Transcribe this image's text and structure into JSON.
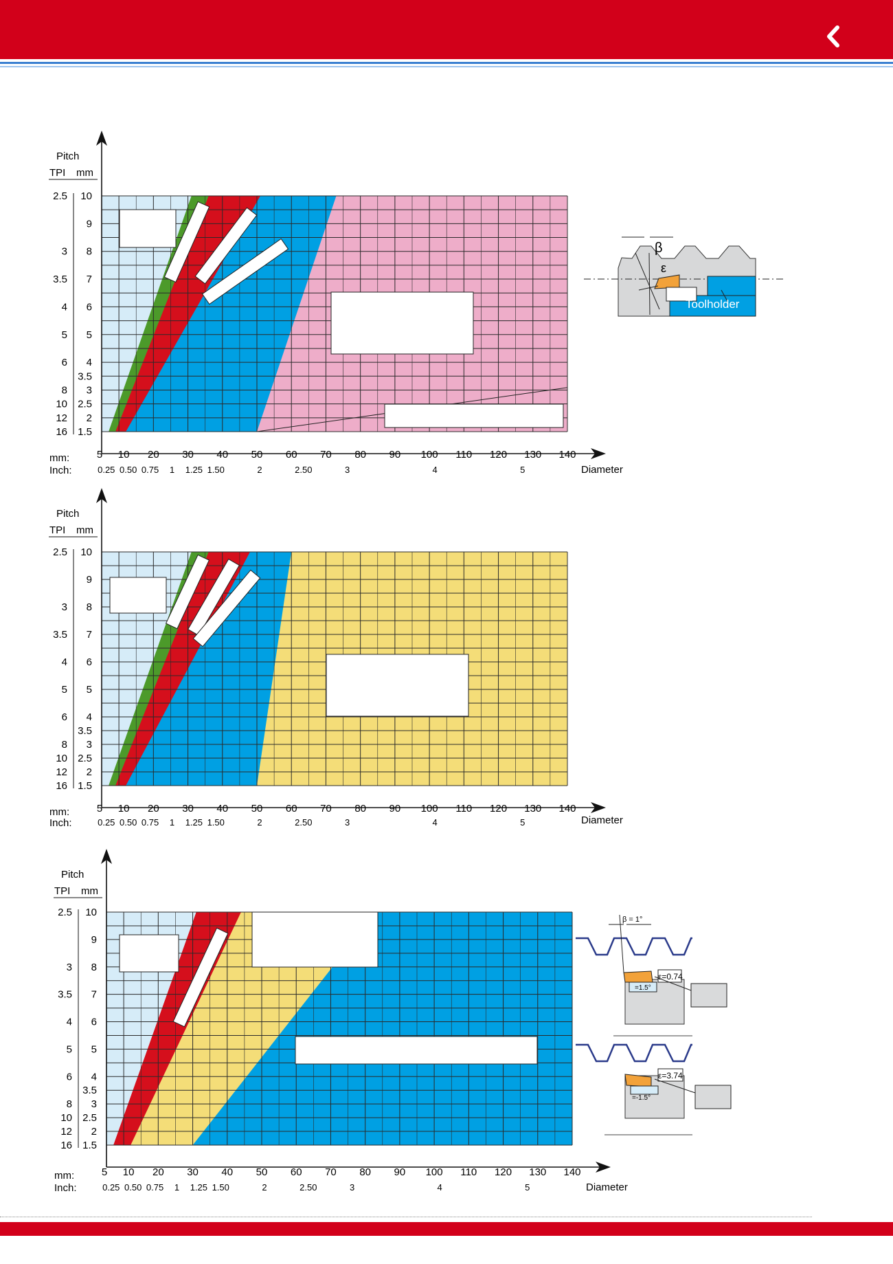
{
  "nav": {
    "back_icon": "chevron-left-icon"
  },
  "colors": {
    "brand_red": "#d2001a",
    "light_blue": "#d6ecf8",
    "green": "#4c9a2a",
    "red": "#d50f1c",
    "blue": "#00a0e3",
    "yellow": "#f4dd78",
    "pink": "#eeadc9",
    "orange": "#f2a23a",
    "grey": "#d7d8d9"
  },
  "axes": {
    "pitch_label": "Pitch",
    "tpi_label": "TPI",
    "mm_label": "mm",
    "diameter_label": "Diameter",
    "mm_row_label": "mm:",
    "inch_row_label": "Inch:",
    "pitch_mm_ticks": [
      "10",
      "9",
      "8",
      "7",
      "6",
      "5",
      "4",
      "3.5",
      "3",
      "2.5",
      "2",
      "1.5"
    ],
    "tpi_ticks": [
      "2.5",
      "3",
      "3.5",
      "4",
      "5",
      "6",
      "8",
      "10",
      "12",
      "16"
    ],
    "diameter_mm_ticks": [
      "5",
      "10",
      "20",
      "30",
      "40",
      "50",
      "60",
      "70",
      "80",
      "90",
      "100",
      "110",
      "120",
      "130",
      "140"
    ],
    "diameter_inch_ticks": [
      "0.25",
      "0.50",
      "0.75",
      "1",
      "1.25",
      "1.50",
      "2",
      "2.50",
      "3",
      "4",
      "5"
    ]
  },
  "chart_data": [
    {
      "type": "area",
      "x_axis": "Diameter (mm)",
      "y_axis": "Pitch (mm)",
      "xlim": [
        5,
        140
      ],
      "pitch_mm_levels": [
        1.5,
        2,
        2.5,
        3,
        3.5,
        4,
        5,
        6,
        7,
        8,
        9,
        10
      ],
      "regions": [
        {
          "color": "light blue",
          "boundary_at_pitch_1.5": 7,
          "boundary_at_pitch_10": 31
        },
        {
          "color": "green",
          "boundary_at_pitch_1.5": 9,
          "boundary_at_pitch_10": 36
        },
        {
          "color": "red",
          "boundary_at_pitch_1.5": 12,
          "boundary_at_pitch_10": 51
        },
        {
          "color": "blue",
          "boundary_at_pitch_1.5": 50,
          "boundary_at_pitch_10": 73
        },
        {
          "color": "yellow",
          "boundary_at_pitch_1.5": 140,
          "boundary_at_pitch_10": 140
        },
        {
          "color": "pink",
          "from": [
            50,
            1.5
          ],
          "to": [
            140,
            5.0
          ]
        }
      ]
    },
    {
      "type": "area",
      "x_axis": "Diameter (mm)",
      "y_axis": "Pitch (mm)",
      "xlim": [
        5,
        140
      ],
      "pitch_mm_levels": [
        1.5,
        2,
        2.5,
        3,
        3.5,
        4,
        5,
        6,
        7,
        8,
        9,
        10
      ],
      "regions": [
        {
          "color": "light blue",
          "boundary_at_pitch_1.5": 7,
          "boundary_at_pitch_10": 31
        },
        {
          "color": "green",
          "boundary_at_pitch_1.5": 9,
          "boundary_at_pitch_10": 36
        },
        {
          "color": "red",
          "boundary_at_pitch_1.5": 12,
          "boundary_at_pitch_10": 48
        },
        {
          "color": "blue",
          "boundary_at_pitch_1.5": 50,
          "boundary_at_pitch_10": 60
        },
        {
          "color": "yellow",
          "boundary_at_pitch_1.5": 140,
          "boundary_at_pitch_10": 140
        }
      ]
    },
    {
      "type": "area",
      "x_axis": "Diameter (mm)",
      "y_axis": "Pitch (mm)",
      "xlim": [
        5,
        140
      ],
      "pitch_mm_levels": [
        1.5,
        2,
        2.5,
        3,
        3.5,
        4,
        5,
        6,
        7,
        8,
        9,
        10
      ],
      "regions": [
        {
          "color": "light blue",
          "boundary_at_pitch_1.5": 7,
          "boundary_at_pitch_10": 31
        },
        {
          "color": "red",
          "boundary_at_pitch_1.5": 12,
          "boundary_at_pitch_10": 44
        },
        {
          "color": "yellow",
          "boundary_at_pitch_1.5": 30,
          "boundary_at_pitch_10": 83
        },
        {
          "color": "blue",
          "boundary_at_pitch_1.5": 140,
          "boundary_at_pitch_10": 140
        }
      ]
    }
  ],
  "diagram1": {
    "beta_symbol": "β",
    "epsilon_symbol": "ε",
    "toolholder_label": "Toolholder"
  },
  "diagram3": {
    "beta_label": "β = 1°",
    "top_epsilon": "ε=0.74",
    "top_angle": "=1.5°",
    "bottom_epsilon": "ε=3.74",
    "bottom_angle": "=-1.5°"
  }
}
